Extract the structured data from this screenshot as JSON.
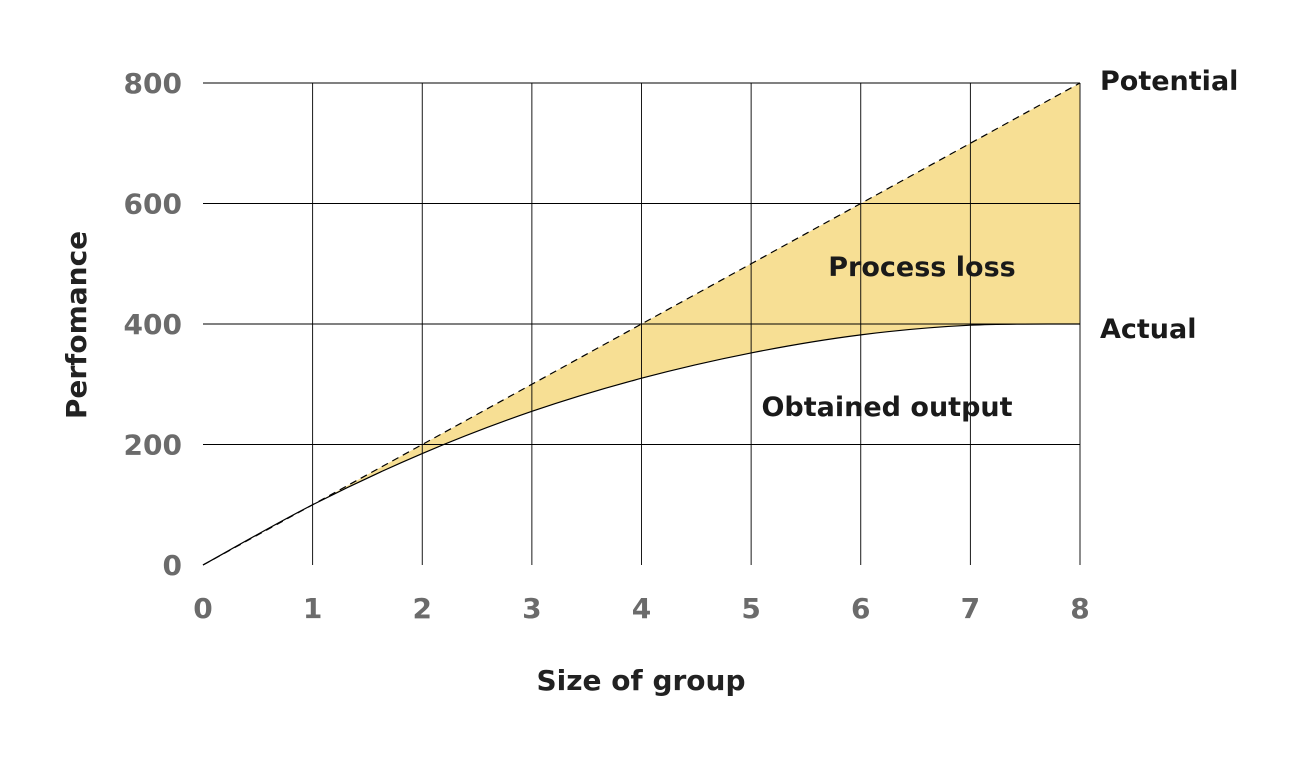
{
  "chart_data": {
    "type": "line",
    "xlabel": "Size of group",
    "ylabel": "Perfomance",
    "xlim": [
      0,
      8
    ],
    "ylim": [
      0,
      800
    ],
    "x_ticks": [
      "0",
      "1",
      "2",
      "3",
      "4",
      "5",
      "6",
      "7",
      "8"
    ],
    "y_ticks": [
      "0",
      "200",
      "400",
      "600",
      "800"
    ],
    "grid": true,
    "x": [
      0,
      1,
      2,
      3,
      4,
      5,
      6,
      7,
      8
    ],
    "series": [
      {
        "name": "Potential",
        "style": "dashed",
        "values": [
          0,
          100,
          200,
          300,
          400,
          500,
          600,
          700,
          800
        ]
      },
      {
        "name": "Actual",
        "style": "solid",
        "values": [
          0,
          100,
          185,
          255,
          310,
          352,
          382,
          398,
          400
        ]
      }
    ],
    "annotations": {
      "gap_region": "Process loss",
      "below_curve": "Obtained output"
    },
    "colors": {
      "fill": "#f7df94",
      "line": "#000000",
      "grid": "#000000"
    }
  }
}
